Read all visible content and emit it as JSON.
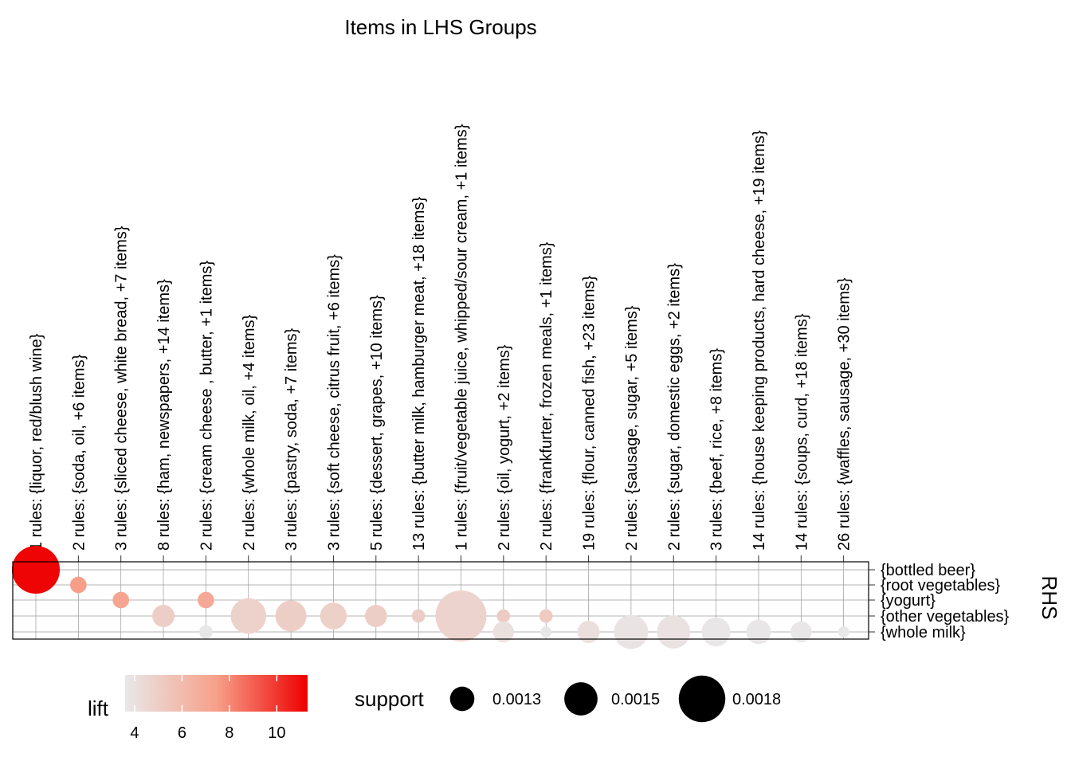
{
  "chart_data": {
    "type": "scatter",
    "title": "Items in LHS Groups",
    "ylabel": "RHS",
    "lhs_groups": [
      "1 rules: {liquor, red/blush wine}",
      "2 rules: {soda, oil, +6 items}",
      "3 rules: {sliced cheese, white bread, +7 items}",
      "8 rules: {ham, newspapers, +14 items}",
      "2 rules: {cream cheese , butter, +1 items}",
      "2 rules: {whole milk, oil, +4 items}",
      "3 rules: {pastry, soda, +7 items}",
      "3 rules: {soft cheese, citrus fruit, +6 items}",
      "5 rules: {dessert, grapes, +10 items}",
      "13 rules: {butter milk, hamburger meat, +18 items}",
      "1 rules: {fruit/vegetable juice, whipped/sour cream, +1 items}",
      "2 rules: {oil, yogurt, +2 items}",
      "2 rules: {frankfurter, frozen meals, +1 items}",
      "19 rules: {flour, canned fish, +23 items}",
      "2 rules: {sausage, sugar, +5 items}",
      "2 rules: {sugar, domestic eggs, +2 items}",
      "3 rules: {beef, rice, +8 items}",
      "14 rules: {house keeping products, hard cheese, +19 items}",
      "14 rules: {soups, curd, +18 items}",
      "26 rules: {waffles, sausage, +30 items}"
    ],
    "rhs_items": [
      "{bottled beer}",
      "{root vegetables}",
      "{yogurt}",
      "{other vegetables}",
      "{whole milk}"
    ],
    "points": [
      {
        "lhs": 0,
        "rhs": 0,
        "support": 0.00183,
        "lift": 11.2
      },
      {
        "lhs": 1,
        "rhs": 1,
        "support": 0.00112,
        "lift": 7.5
      },
      {
        "lhs": 2,
        "rhs": 2,
        "support": 0.00112,
        "lift": 7.2
      },
      {
        "lhs": 3,
        "rhs": 3,
        "support": 0.00125,
        "lift": 5.0
      },
      {
        "lhs": 4,
        "rhs": 2,
        "support": 0.00112,
        "lift": 7.0
      },
      {
        "lhs": 4,
        "rhs": 4,
        "support": 0.00105,
        "lift": 3.7
      },
      {
        "lhs": 5,
        "rhs": 3,
        "support": 0.00155,
        "lift": 4.8
      },
      {
        "lhs": 6,
        "rhs": 3,
        "support": 0.00145,
        "lift": 5.0
      },
      {
        "lhs": 7,
        "rhs": 3,
        "support": 0.00135,
        "lift": 4.9
      },
      {
        "lhs": 8,
        "rhs": 3,
        "support": 0.00125,
        "lift": 5.0
      },
      {
        "lhs": 9,
        "rhs": 3,
        "support": 0.00105,
        "lift": 5.0
      },
      {
        "lhs": 10,
        "rhs": 3,
        "support": 0.0019,
        "lift": 4.7
      },
      {
        "lhs": 11,
        "rhs": 3,
        "support": 0.00105,
        "lift": 5.1
      },
      {
        "lhs": 11,
        "rhs": 4,
        "support": 0.00122,
        "lift": 4.0
      },
      {
        "lhs": 12,
        "rhs": 3,
        "support": 0.00105,
        "lift": 5.2
      },
      {
        "lhs": 12,
        "rhs": 4,
        "support": 0.001,
        "lift": 3.7
      },
      {
        "lhs": 13,
        "rhs": 4,
        "support": 0.00125,
        "lift": 4.1
      },
      {
        "lhs": 14,
        "rhs": 4,
        "support": 0.00152,
        "lift": 3.8
      },
      {
        "lhs": 15,
        "rhs": 4,
        "support": 0.0015,
        "lift": 3.9
      },
      {
        "lhs": 16,
        "rhs": 4,
        "support": 0.0014,
        "lift": 3.7
      },
      {
        "lhs": 17,
        "rhs": 4,
        "support": 0.0013,
        "lift": 3.7
      },
      {
        "lhs": 18,
        "rhs": 4,
        "support": 0.00122,
        "lift": 3.7
      },
      {
        "lhs": 19,
        "rhs": 4,
        "support": 0.001,
        "lift": 3.6
      }
    ],
    "lift_legend": {
      "title": "lift",
      "ticks": [
        4,
        6,
        8,
        10
      ],
      "range": [
        3.6,
        11.3
      ],
      "low_color": "#e8e8e8",
      "high_color": "#ee0000"
    },
    "support_legend": {
      "title": "support",
      "values": [
        0.0013,
        0.0015,
        0.0018
      ],
      "labels": [
        "0.0013",
        "0.0015",
        "0.0018"
      ]
    },
    "grid": true
  }
}
